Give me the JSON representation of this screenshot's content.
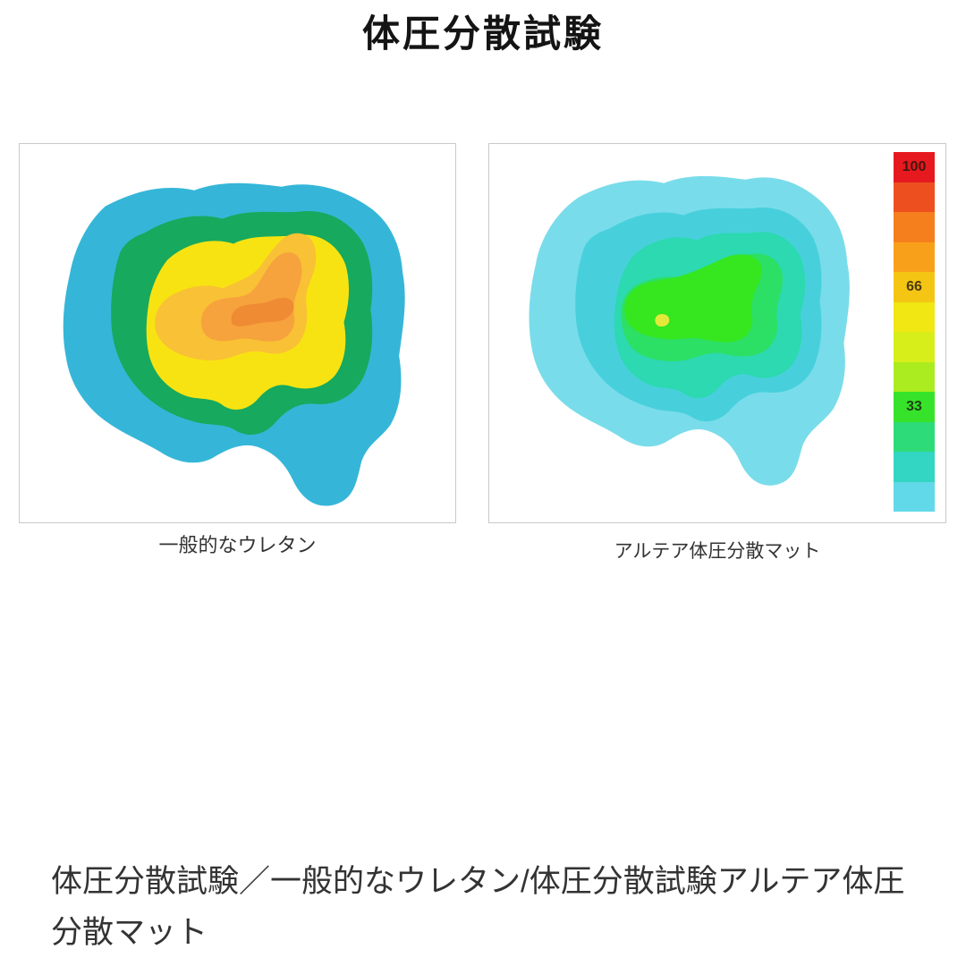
{
  "title": "体圧分散試験",
  "chart_data": {
    "type": "heatmap",
    "title": "体圧分散試験",
    "legend_position": "right-inside-second-panel",
    "scale": {
      "orientation": "vertical",
      "max_label": "100",
      "mid_label": "66",
      "low_label": "33",
      "tick_labels": [
        "100",
        "66",
        "33"
      ],
      "bands": [
        {
          "color": "#e6191f",
          "label": "100"
        },
        {
          "color": "#ee4f1e"
        },
        {
          "color": "#f57f1d"
        },
        {
          "color": "#f9a01a"
        },
        {
          "color": "#f5c513",
          "label": "66"
        },
        {
          "color": "#f0e713"
        },
        {
          "color": "#d8ee1a"
        },
        {
          "color": "#abec20"
        },
        {
          "color": "#36e32a",
          "label": "33"
        },
        {
          "color": "#2ddc78"
        },
        {
          "color": "#32d6c2"
        },
        {
          "color": "#62d9e8"
        }
      ]
    },
    "panels": [
      {
        "caption": "一般的なウレタン",
        "levels": [
          {
            "name": "contour-outer",
            "color": "#35b6d8",
            "approx_pressure": 15
          },
          {
            "name": "contour-2",
            "color": "#17a95e",
            "approx_pressure": 33
          },
          {
            "name": "contour-3",
            "color": "#f8e312",
            "approx_pressure": 55
          },
          {
            "name": "contour-4",
            "color": "#f9c135",
            "approx_pressure": 66
          },
          {
            "name": "contour-5",
            "color": "#f6a23d",
            "approx_pressure": 72
          },
          {
            "name": "contour-peak",
            "color": "#ee8b33",
            "approx_pressure": 78
          }
        ]
      },
      {
        "caption": "アルテア体圧分散マット",
        "levels": [
          {
            "name": "contour-outer",
            "color": "#79dcea",
            "approx_pressure": 8
          },
          {
            "name": "contour-2",
            "color": "#47d0dc",
            "approx_pressure": 15
          },
          {
            "name": "contour-3",
            "color": "#2cd9b0",
            "approx_pressure": 25
          },
          {
            "name": "contour-4",
            "color": "#2ce066",
            "approx_pressure": 33
          },
          {
            "name": "contour-5",
            "color": "#36e61f",
            "approx_pressure": 40
          },
          {
            "name": "contour-peak-dot",
            "color": "#e3e93a",
            "approx_pressure": 55
          }
        ]
      }
    ]
  },
  "footer": {
    "lines": [
      "体圧分散試験／一般的なウレタン/体圧分散試験アルテア体圧",
      "分散マット"
    ]
  }
}
